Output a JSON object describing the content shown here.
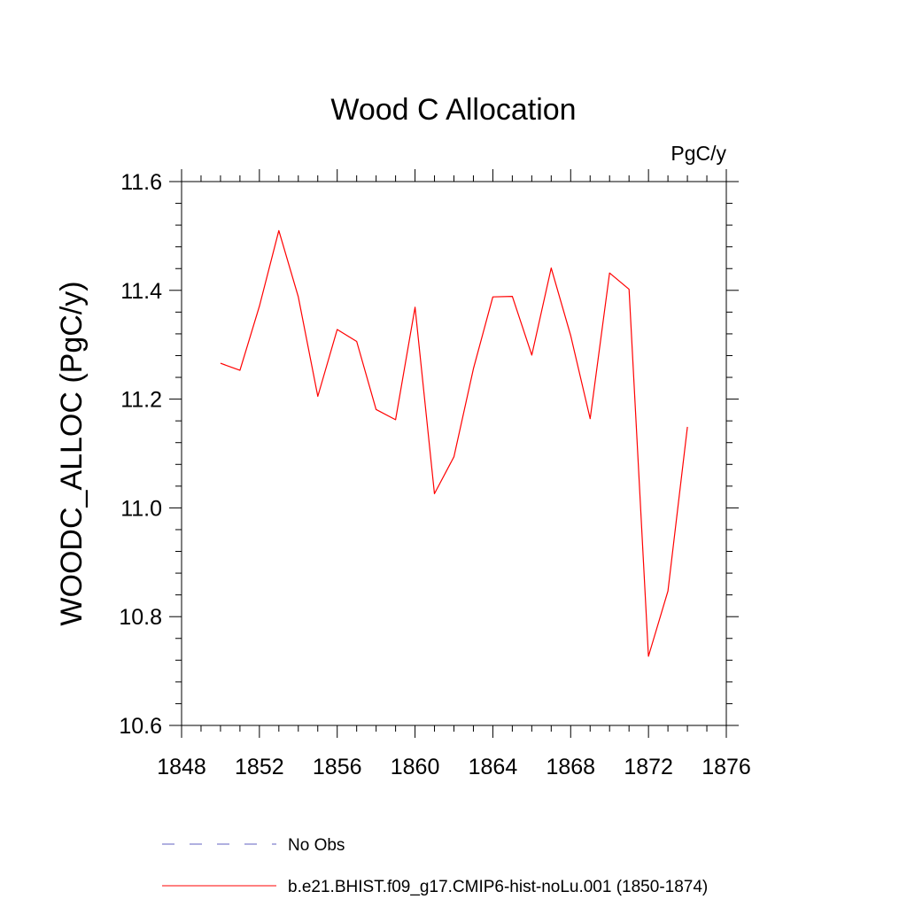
{
  "chart_data": {
    "type": "line",
    "title": "Wood C Allocation",
    "units": "PgC/y",
    "xlabel": "",
    "ylabel": "WOODC_ALLOC  (PgC/y)",
    "xlim": [
      1848,
      1876
    ],
    "ylim": [
      10.6,
      11.6
    ],
    "x_ticks": [
      1848,
      1852,
      1856,
      1860,
      1864,
      1868,
      1872,
      1876
    ],
    "x_tick_labels": [
      "1848",
      "1852",
      "1856",
      "1860",
      "1864",
      "1868",
      "1872",
      "1876"
    ],
    "y_ticks": [
      10.6,
      10.8,
      11.0,
      11.2,
      11.4,
      11.6
    ],
    "y_tick_labels": [
      "10.6",
      "10.8",
      "11.0",
      "11.2",
      "11.4",
      "11.6"
    ],
    "grid": false,
    "legend_position": "bottom",
    "series": [
      {
        "name": "b.e21.BHIST.f09_g17.CMIP6-hist-noLu.001 (1850-1874)",
        "color": "#ff0000",
        "dash": "solid",
        "x": [
          1850,
          1851,
          1852,
          1853,
          1854,
          1855,
          1856,
          1857,
          1858,
          1859,
          1860,
          1861,
          1862,
          1863,
          1864,
          1865,
          1866,
          1867,
          1868,
          1869,
          1870,
          1871,
          1872,
          1873,
          1874
        ],
        "y": [
          11.266,
          11.253,
          11.371,
          11.51,
          11.388,
          11.205,
          11.328,
          11.306,
          11.181,
          11.162,
          11.369,
          11.026,
          11.094,
          11.256,
          11.388,
          11.389,
          11.281,
          11.441,
          11.317,
          11.164,
          11.432,
          11.402,
          10.727,
          10.847,
          11.149
        ]
      }
    ],
    "legend": [
      {
        "label": "No Obs",
        "color": "#6060c0",
        "dash": "dashed"
      },
      {
        "label": "b.e21.BHIST.f09_g17.CMIP6-hist-noLu.001 (1850-1874)",
        "color": "#ff0000",
        "dash": "solid"
      }
    ]
  }
}
